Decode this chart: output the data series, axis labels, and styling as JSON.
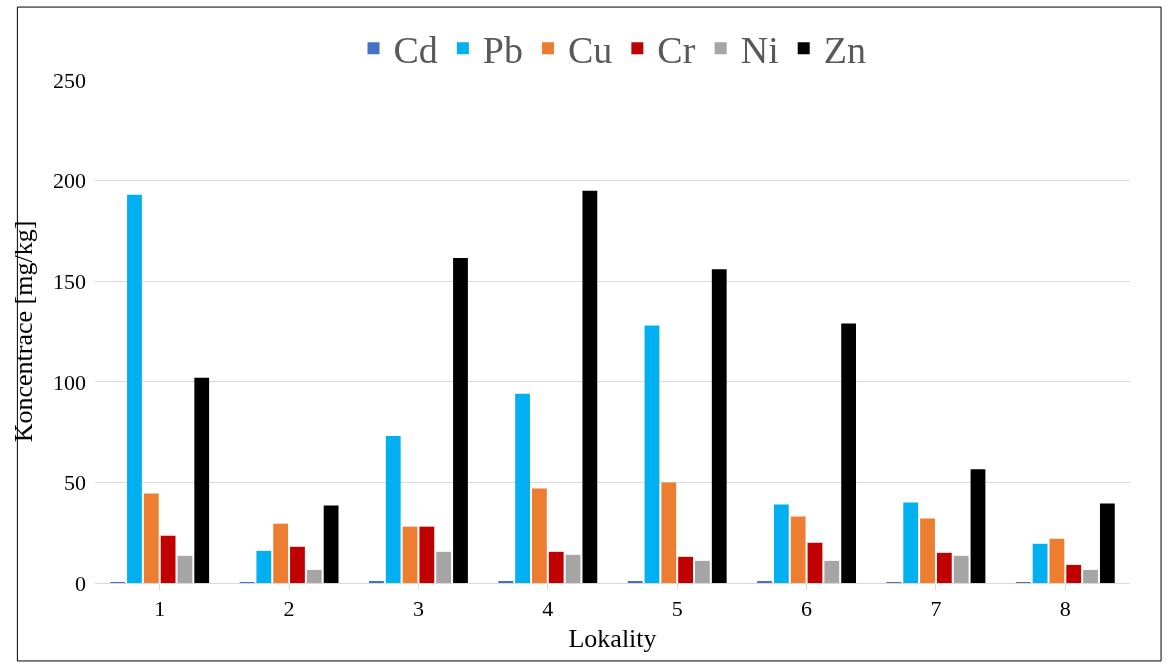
{
  "chart_data": {
    "type": "bar",
    "xlabel": "Lokality",
    "ylabel": "Koncentrace [mg/kg]",
    "categories": [
      "1",
      "2",
      "3",
      "4",
      "5",
      "6",
      "7",
      "8"
    ],
    "series": [
      {
        "name": "Cd",
        "color": "#4472c4",
        "values": [
          0.3,
          0.3,
          1,
          1,
          1,
          0.5,
          0.3,
          0.3
        ]
      },
      {
        "name": "Pb",
        "color": "#00b0f0",
        "values": [
          193,
          16,
          73,
          94,
          128,
          39,
          40,
          19.5
        ]
      },
      {
        "name": "Cu",
        "color": "#ed7d31",
        "values": [
          44.5,
          29.5,
          28,
          47,
          50,
          33,
          32,
          22
        ]
      },
      {
        "name": "Cr",
        "color": "#c00000",
        "values": [
          23.5,
          18,
          28,
          15.5,
          13,
          20,
          15,
          9
        ]
      },
      {
        "name": "Ni",
        "color": "#a5a5a5",
        "values": [
          13.5,
          6.5,
          15.5,
          14,
          11,
          11,
          13.5,
          6.5
        ]
      },
      {
        "name": "Zn",
        "color": "#000000",
        "values": [
          102,
          38.5,
          161.5,
          195,
          156,
          129,
          56.5,
          39.5
        ]
      }
    ],
    "ylim": [
      0,
      250
    ],
    "yticks": [
      0,
      50,
      100,
      150,
      200,
      250
    ],
    "grid": "y",
    "legend": "top"
  }
}
